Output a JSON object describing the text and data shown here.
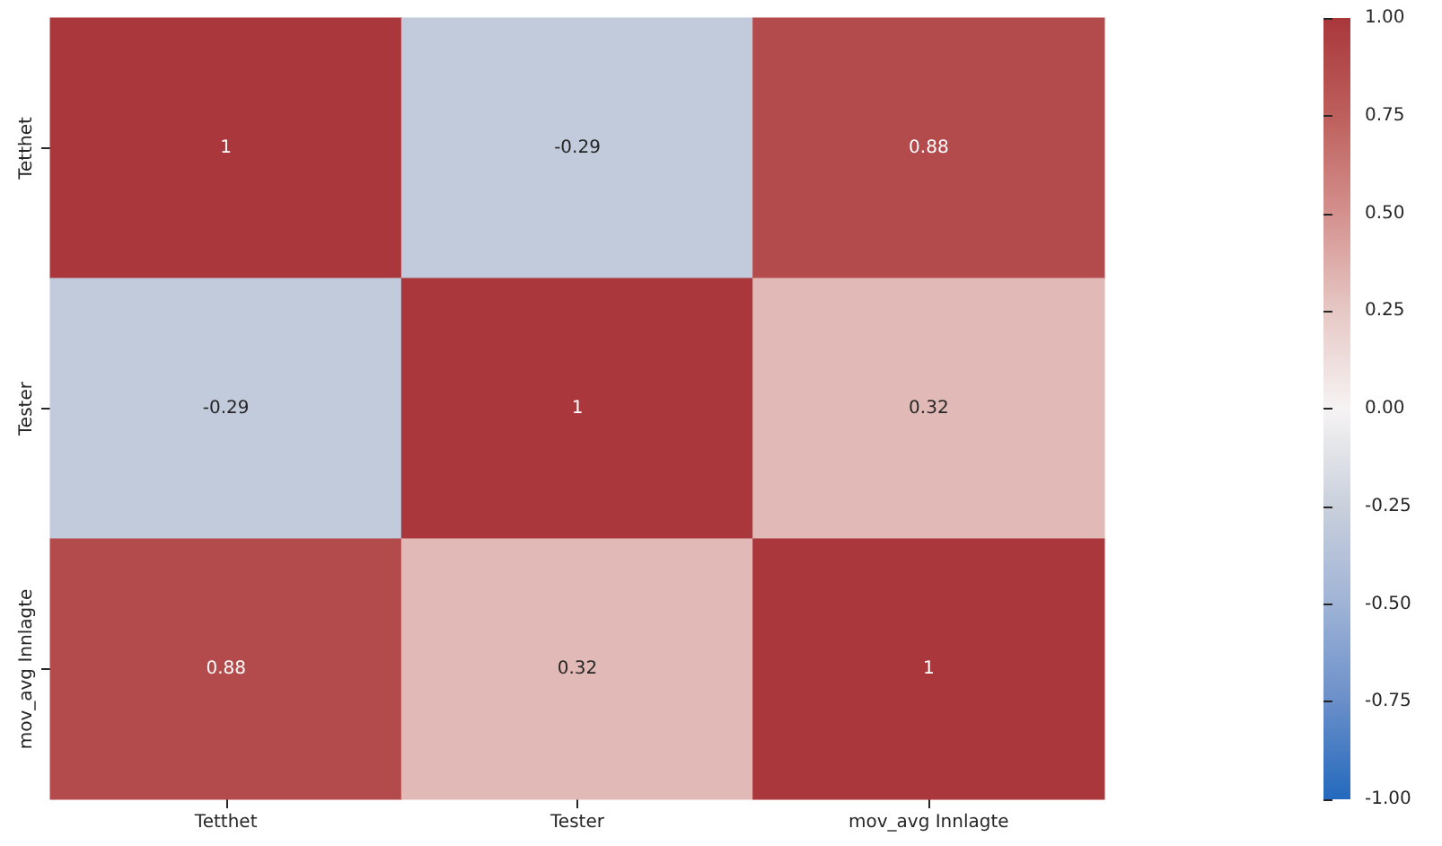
{
  "chart_data": {
    "type": "heatmap",
    "categories": [
      "Tetthet",
      "Tester",
      "mov_avg Innlagte"
    ],
    "y_categories": [
      "Tetthet",
      "Tester",
      "mov_avg Innlagte"
    ],
    "cells": [
      [
        1,
        -0.29,
        0.88
      ],
      [
        -0.29,
        1,
        0.32
      ],
      [
        0.88,
        0.32,
        1
      ]
    ],
    "data_labels": true,
    "clim": [
      -1,
      1
    ],
    "cticks": [
      {
        "value": -1,
        "label": "-1.00"
      },
      {
        "value": -0.75,
        "label": "-0.75"
      },
      {
        "value": -0.5,
        "label": "-0.50"
      },
      {
        "value": -0.25,
        "label": "-0.25"
      },
      {
        "value": 0,
        "label": "0.00"
      },
      {
        "value": 0.25,
        "label": "0.25"
      },
      {
        "value": 0.5,
        "label": "0.50"
      },
      {
        "value": 0.75,
        "label": "0.75"
      },
      {
        "value": 1,
        "label": "1.00"
      }
    ]
  }
}
